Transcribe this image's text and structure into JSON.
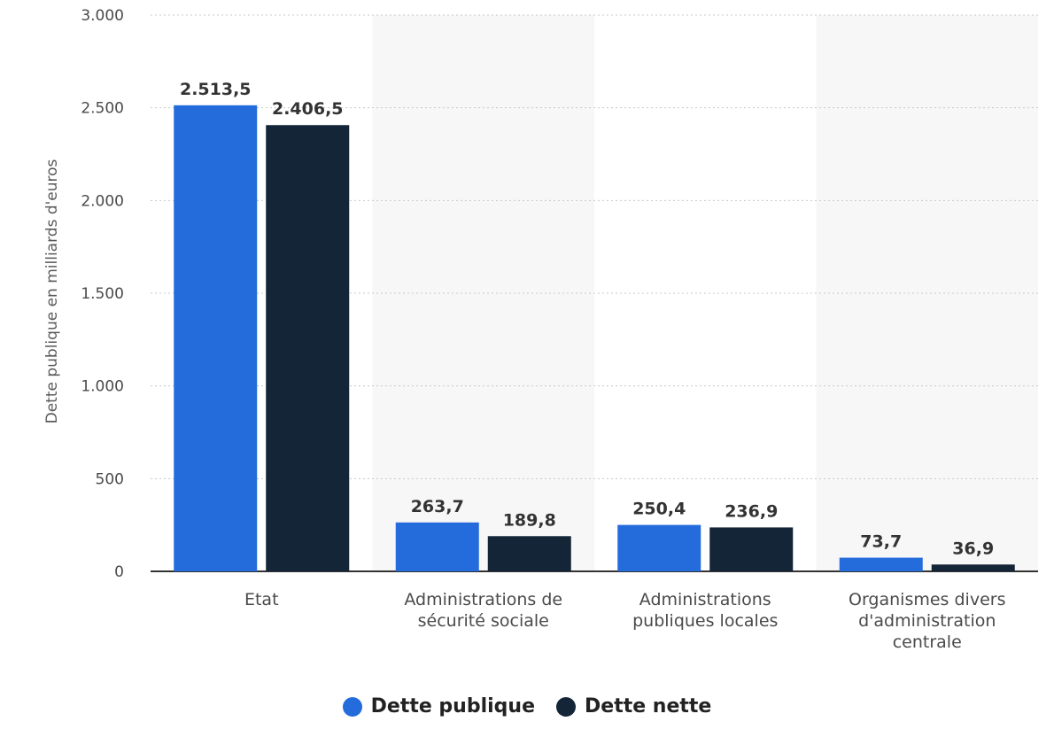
{
  "chart_data": {
    "type": "bar",
    "ylabel": "Dette publique en milliards d'euros",
    "ylim": [
      0,
      3000
    ],
    "yticks": [
      0,
      500,
      1000,
      1500,
      2000,
      2500,
      3000
    ],
    "ytick_labels": [
      "0",
      "500",
      "1.000",
      "1.500",
      "2.000",
      "2.500",
      "3.000"
    ],
    "grid": true,
    "categories": [
      [
        "Etat"
      ],
      [
        "Administrations de",
        "sécurité sociale"
      ],
      [
        "Administrations",
        "publiques locales"
      ],
      [
        "Organismes divers",
        "d'administration",
        "centrale"
      ]
    ],
    "series": [
      {
        "name": "Dette publique",
        "color": "#246cdc",
        "values": [
          2513.5,
          263.7,
          250.4,
          73.7
        ],
        "labels": [
          "2.513,5",
          "263,7",
          "250,4",
          "73,7"
        ]
      },
      {
        "name": "Dette nette",
        "color": "#132537",
        "values": [
          2406.5,
          189.8,
          236.9,
          36.9
        ],
        "labels": [
          "2.406,5",
          "189,8",
          "236,9",
          "36,9"
        ]
      }
    ],
    "legend_position": "bottom-center"
  }
}
